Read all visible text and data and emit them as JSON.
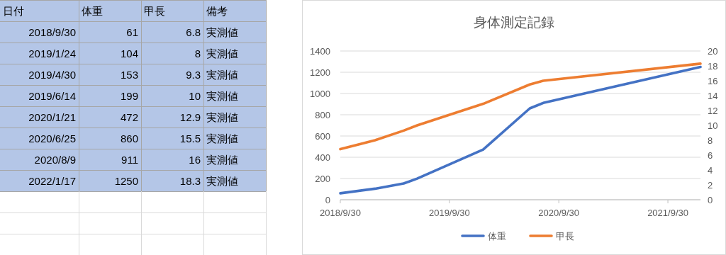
{
  "chart_data": [
    {
      "type": "other",
      "annotations": [
        "日付",
        "体重",
        "甲長",
        "備考",
        "2018/9/30",
        "61",
        "6.8",
        "実測値",
        "2019/1/24",
        "104",
        "8",
        "実測値",
        "2019/4/30",
        "153",
        "9.3",
        "実測値",
        "2019/6/14",
        "199",
        "10",
        "実測値",
        "2020/1/21",
        "472",
        "12.9",
        "実測値",
        "2020/6/25",
        "860",
        "15.5",
        "実測値",
        "2020/8/9",
        "911",
        "16",
        "実測値",
        "2022/1/17",
        "1250",
        "18.3",
        "実測値"
      ]
    },
    {
      "type": "line",
      "title": "身体測定記録",
      "x": [
        "2018-09-30",
        "2019-01-24",
        "2019-04-30",
        "2019-06-14",
        "2020-01-21",
        "2020-06-25",
        "2020-08-09",
        "2022-01-17"
      ],
      "series": [
        {
          "name": "体重",
          "color": "#4472c4",
          "values": [
            61,
            104,
            153,
            199,
            472,
            860,
            911,
            1250
          ]
        },
        {
          "name": "甲長",
          "color": "#ed7d31",
          "axis": "y2",
          "values": [
            6.8,
            8,
            9.3,
            10,
            12.9,
            15.5,
            16,
            18.3
          ]
        }
      ],
      "xlim": [
        "2018-09-30",
        "2022-01-17"
      ],
      "xticks": [
        {
          "value": "2018-09-30",
          "label": "2018/9/30"
        },
        {
          "value": "2019-09-30",
          "label": "2019/9/30"
        },
        {
          "value": "2020-09-30",
          "label": "2020/9/30"
        },
        {
          "value": "2021-09-30",
          "label": "2021/9/30"
        }
      ],
      "ylim": [
        0,
        1400
      ],
      "yticks": [
        0,
        200,
        400,
        600,
        800,
        1000,
        1200,
        1400
      ],
      "y2lim": [
        0,
        20
      ],
      "y2ticks": [
        0,
        2,
        4,
        6,
        8,
        10,
        12,
        14,
        16,
        18,
        20
      ],
      "grid": "y",
      "legend": "bottom",
      "line_style": "solid"
    }
  ]
}
